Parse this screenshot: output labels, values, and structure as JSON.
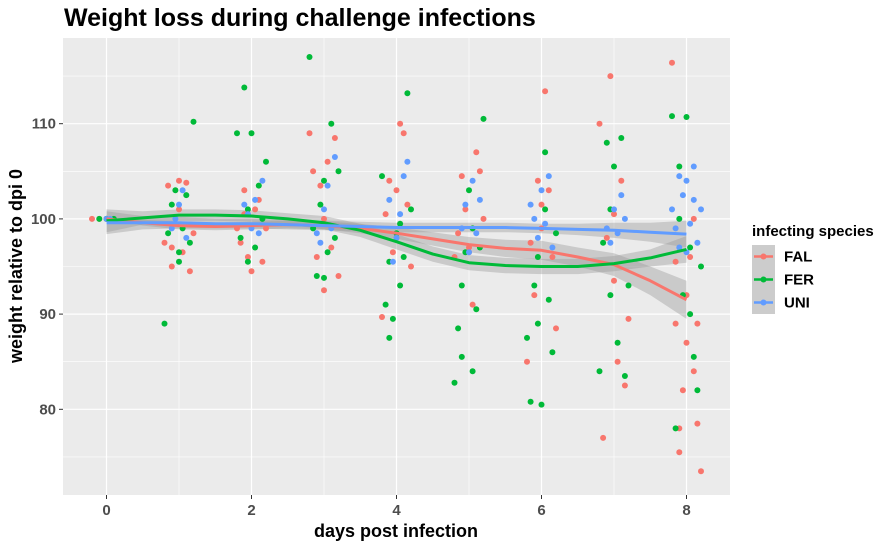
{
  "chart_data": {
    "type": "scatter",
    "title": "Weight loss during challenge infections",
    "xlabel": "days post infection",
    "ylabel": "weight relative to dpi 0",
    "xlim": [
      -0.6,
      8.6
    ],
    "ylim": [
      71,
      119
    ],
    "x_ticks": [
      0,
      2,
      4,
      6,
      8
    ],
    "y_ticks": [
      80,
      90,
      100,
      110
    ],
    "grid": true,
    "legend_title": "infecting species",
    "legend_position": "right",
    "series": [
      {
        "name": "FAL",
        "color": "#F8766D",
        "points": [
          [
            -0.2,
            100
          ],
          [
            -0.1,
            100
          ],
          [
            0.0,
            100
          ],
          [
            0.8,
            97.5
          ],
          [
            0.85,
            103.5
          ],
          [
            0.9,
            95
          ],
          [
            0.95,
            99.5
          ],
          [
            1.0,
            104
          ],
          [
            1.05,
            96.5
          ],
          [
            1.1,
            103.8
          ],
          [
            1.15,
            94.5
          ],
          [
            1.2,
            98.5
          ],
          [
            1.0,
            101
          ],
          [
            0.9,
            97
          ],
          [
            1.8,
            99
          ],
          [
            1.85,
            97.5
          ],
          [
            1.9,
            103
          ],
          [
            1.95,
            96
          ],
          [
            2.0,
            94.5
          ],
          [
            2.05,
            101
          ],
          [
            2.1,
            102
          ],
          [
            2.15,
            95.5
          ],
          [
            2.2,
            99
          ],
          [
            1.9,
            100.5
          ],
          [
            2.8,
            109
          ],
          [
            2.85,
            105
          ],
          [
            2.9,
            96
          ],
          [
            2.95,
            103.5
          ],
          [
            3.0,
            100
          ],
          [
            3.05,
            106
          ],
          [
            3.1,
            97
          ],
          [
            3.15,
            108.5
          ],
          [
            3.2,
            94
          ],
          [
            3.0,
            92.5
          ],
          [
            3.8,
            89.7
          ],
          [
            3.85,
            100.5
          ],
          [
            3.9,
            104
          ],
          [
            3.95,
            96.5
          ],
          [
            4.0,
            98
          ],
          [
            4.05,
            110
          ],
          [
            4.1,
            109
          ],
          [
            4.15,
            101.5
          ],
          [
            4.2,
            95
          ],
          [
            4.0,
            103
          ],
          [
            4.8,
            96
          ],
          [
            4.85,
            98.5
          ],
          [
            4.9,
            104.5
          ],
          [
            4.95,
            101
          ],
          [
            5.0,
            97
          ],
          [
            5.05,
            91
          ],
          [
            5.1,
            107
          ],
          [
            5.15,
            105
          ],
          [
            5.2,
            100
          ],
          [
            5.0,
            96.5
          ],
          [
            5.8,
            85
          ],
          [
            5.85,
            97.5
          ],
          [
            5.9,
            92
          ],
          [
            5.95,
            104
          ],
          [
            6.0,
            99
          ],
          [
            6.05,
            113.4
          ],
          [
            6.1,
            103
          ],
          [
            6.15,
            96
          ],
          [
            6.2,
            88.5
          ],
          [
            6.0,
            101.5
          ],
          [
            6.8,
            110
          ],
          [
            6.85,
            77
          ],
          [
            6.9,
            98
          ],
          [
            6.95,
            115
          ],
          [
            7.0,
            93.5
          ],
          [
            7.05,
            85
          ],
          [
            7.1,
            104
          ],
          [
            7.15,
            82.5
          ],
          [
            7.2,
            89.5
          ],
          [
            7.0,
            100.5
          ],
          [
            7.8,
            116.4
          ],
          [
            7.85,
            89
          ],
          [
            7.9,
            78
          ],
          [
            7.95,
            82
          ],
          [
            8.0,
            87
          ],
          [
            8.05,
            96
          ],
          [
            8.1,
            84
          ],
          [
            8.15,
            78.5
          ],
          [
            8.2,
            73.5
          ],
          [
            7.9,
            75.5
          ],
          [
            8.0,
            92
          ],
          [
            8.1,
            100
          ],
          [
            7.85,
            95.5
          ],
          [
            8.15,
            89
          ]
        ]
      },
      {
        "name": "FER",
        "color": "#00BA38",
        "points": [
          [
            -0.1,
            100
          ],
          [
            0.0,
            100
          ],
          [
            0.1,
            100
          ],
          [
            0.8,
            89
          ],
          [
            0.85,
            98.5
          ],
          [
            0.9,
            101.5
          ],
          [
            0.95,
            103
          ],
          [
            1.0,
            96.5
          ],
          [
            1.05,
            99
          ],
          [
            1.1,
            102.5
          ],
          [
            1.15,
            97.5
          ],
          [
            1.2,
            110.2
          ],
          [
            1.0,
            95.5
          ],
          [
            1.8,
            109
          ],
          [
            1.85,
            98
          ],
          [
            1.9,
            113.8
          ],
          [
            1.95,
            101
          ],
          [
            2.0,
            109
          ],
          [
            2.05,
            97
          ],
          [
            2.1,
            103.5
          ],
          [
            2.15,
            100
          ],
          [
            2.2,
            106
          ],
          [
            1.95,
            95.5
          ],
          [
            2.8,
            117
          ],
          [
            2.85,
            99
          ],
          [
            2.9,
            94
          ],
          [
            2.95,
            101.5
          ],
          [
            3.0,
            104
          ],
          [
            3.05,
            96.5
          ],
          [
            3.1,
            110
          ],
          [
            3.15,
            98
          ],
          [
            3.2,
            105
          ],
          [
            3.0,
            93.8
          ],
          [
            3.8,
            104.5
          ],
          [
            3.85,
            91
          ],
          [
            3.9,
            95.5
          ],
          [
            3.95,
            89.5
          ],
          [
            4.0,
            98.5
          ],
          [
            4.05,
            93
          ],
          [
            4.1,
            96
          ],
          [
            4.15,
            113.2
          ],
          [
            4.2,
            101
          ],
          [
            3.9,
            87.5
          ],
          [
            4.05,
            99.5
          ],
          [
            4.8,
            82.8
          ],
          [
            4.85,
            88.5
          ],
          [
            4.9,
            93
          ],
          [
            4.95,
            96.5
          ],
          [
            5.0,
            103
          ],
          [
            5.05,
            84
          ],
          [
            5.1,
            90.5
          ],
          [
            5.15,
            97
          ],
          [
            5.2,
            110.5
          ],
          [
            4.9,
            85.5
          ],
          [
            5.05,
            99
          ],
          [
            5.8,
            87.5
          ],
          [
            5.85,
            80.8
          ],
          [
            5.9,
            93
          ],
          [
            5.95,
            96
          ],
          [
            6.0,
            80.5
          ],
          [
            6.05,
            101
          ],
          [
            6.1,
            91.5
          ],
          [
            6.15,
            86
          ],
          [
            6.2,
            98.5
          ],
          [
            6.05,
            107
          ],
          [
            5.95,
            89
          ],
          [
            6.8,
            84
          ],
          [
            6.85,
            97.5
          ],
          [
            6.9,
            108
          ],
          [
            6.95,
            92
          ],
          [
            7.0,
            105.5
          ],
          [
            7.05,
            87
          ],
          [
            7.1,
            108.5
          ],
          [
            7.15,
            83.5
          ],
          [
            7.2,
            93
          ],
          [
            6.95,
            101
          ],
          [
            7.8,
            110.8
          ],
          [
            7.85,
            78
          ],
          [
            7.9,
            105.5
          ],
          [
            7.95,
            92
          ],
          [
            8.0,
            110.7
          ],
          [
            8.05,
            97
          ],
          [
            8.1,
            85.5
          ],
          [
            8.15,
            82
          ],
          [
            8.2,
            95
          ],
          [
            7.9,
            100
          ],
          [
            8.05,
            90
          ]
        ]
      },
      {
        "name": "UNI",
        "color": "#619CFF",
        "points": [
          [
            0.0,
            100
          ],
          [
            0.05,
            100
          ],
          [
            0.9,
            99
          ],
          [
            1.0,
            101.5
          ],
          [
            1.1,
            98
          ],
          [
            1.05,
            103
          ],
          [
            0.95,
            100
          ],
          [
            1.9,
            101.5
          ],
          [
            2.0,
            99
          ],
          [
            2.05,
            102
          ],
          [
            2.1,
            98.5
          ],
          [
            2.15,
            104
          ],
          [
            1.95,
            100.5
          ],
          [
            2.9,
            98.5
          ],
          [
            3.0,
            101
          ],
          [
            3.05,
            103.5
          ],
          [
            3.1,
            99
          ],
          [
            2.95,
            97.5
          ],
          [
            3.15,
            106.5
          ],
          [
            3.9,
            102
          ],
          [
            4.0,
            98
          ],
          [
            4.05,
            100.5
          ],
          [
            4.1,
            104.5
          ],
          [
            4.15,
            106
          ],
          [
            3.95,
            95.5
          ],
          [
            4.9,
            99
          ],
          [
            4.95,
            101.5
          ],
          [
            5.0,
            96.5
          ],
          [
            5.05,
            104
          ],
          [
            5.1,
            98.5
          ],
          [
            5.15,
            102
          ],
          [
            5.9,
            100
          ],
          [
            5.95,
            98
          ],
          [
            6.0,
            103
          ],
          [
            6.05,
            99.5
          ],
          [
            6.1,
            104.5
          ],
          [
            6.15,
            97
          ],
          [
            5.85,
            101.5
          ],
          [
            6.9,
            99
          ],
          [
            6.95,
            97.5
          ],
          [
            7.0,
            101
          ],
          [
            7.05,
            98.5
          ],
          [
            7.1,
            102.5
          ],
          [
            7.15,
            100
          ],
          [
            7.8,
            101
          ],
          [
            7.85,
            99
          ],
          [
            7.9,
            97
          ],
          [
            7.95,
            102.5
          ],
          [
            8.0,
            104
          ],
          [
            8.05,
            99.5
          ],
          [
            8.1,
            105.5
          ],
          [
            8.15,
            97.5
          ],
          [
            8.2,
            101
          ],
          [
            7.9,
            104.5
          ],
          [
            8.0,
            96.5
          ],
          [
            8.1,
            102
          ]
        ]
      }
    ],
    "smooth": [
      {
        "name": "FAL",
        "color": "#F8766D",
        "x": [
          0,
          0.5,
          1,
          1.5,
          2,
          2.5,
          3,
          3.5,
          4,
          4.5,
          5,
          5.5,
          6,
          6.5,
          7,
          7.5,
          8
        ],
        "y": [
          100,
          99.6,
          99.3,
          99.2,
          99.3,
          99.4,
          99.3,
          99.0,
          98.5,
          97.9,
          97.3,
          96.9,
          96.7,
          96.0,
          95.2,
          93.5,
          91.5
        ],
        "lo": [
          100,
          99.3,
          98.9,
          98.8,
          98.9,
          99.0,
          98.9,
          98.5,
          97.9,
          97.2,
          96.5,
          96.0,
          95.7,
          95.0,
          94.0,
          92.0,
          89.5
        ],
        "hi": [
          100,
          99.9,
          99.7,
          99.6,
          99.7,
          99.8,
          99.7,
          99.5,
          99.1,
          98.6,
          98.1,
          97.8,
          97.7,
          97.0,
          96.4,
          95.0,
          93.5
        ]
      },
      {
        "name": "FER",
        "color": "#00BA38",
        "x": [
          0,
          0.5,
          1,
          1.5,
          2,
          2.5,
          3,
          3.5,
          4,
          4.5,
          5,
          5.5,
          6,
          6.5,
          7,
          7.5,
          8
        ],
        "y": [
          99.8,
          100.1,
          100.4,
          100.4,
          100.3,
          100.0,
          99.6,
          98.8,
          97.6,
          96.3,
          95.4,
          95.1,
          95.0,
          95.0,
          95.3,
          95.9,
          96.8
        ],
        "lo": [
          98.6,
          99.4,
          99.8,
          99.8,
          99.7,
          99.4,
          98.9,
          98.1,
          96.8,
          95.5,
          94.6,
          94.3,
          94.2,
          94.2,
          94.5,
          95.0,
          95.4
        ],
        "hi": [
          101.0,
          100.8,
          101.0,
          101.0,
          100.9,
          100.6,
          100.3,
          99.5,
          98.4,
          97.1,
          96.2,
          95.9,
          95.8,
          95.8,
          96.1,
          96.8,
          98.2
        ]
      },
      {
        "name": "UNI",
        "color": "#619CFF",
        "x": [
          0,
          0.5,
          1,
          1.5,
          2,
          2.5,
          3,
          3.5,
          4,
          4.5,
          5,
          5.5,
          6,
          6.5,
          7,
          7.5,
          8
        ],
        "y": [
          99.6,
          99.6,
          99.6,
          99.5,
          99.5,
          99.4,
          99.3,
          99.2,
          99.1,
          99.1,
          99.1,
          99.1,
          99.0,
          98.9,
          98.8,
          98.6,
          98.4
        ],
        "lo": [
          98.4,
          98.9,
          99.0,
          99.0,
          99.0,
          98.9,
          98.8,
          98.7,
          98.6,
          98.6,
          98.6,
          98.6,
          98.5,
          98.3,
          98.0,
          97.6,
          97.0
        ],
        "hi": [
          100.8,
          100.3,
          100.2,
          100.0,
          100.0,
          99.9,
          99.8,
          99.7,
          99.6,
          99.6,
          99.6,
          99.6,
          99.5,
          99.5,
          99.6,
          99.6,
          99.8
        ]
      }
    ]
  }
}
